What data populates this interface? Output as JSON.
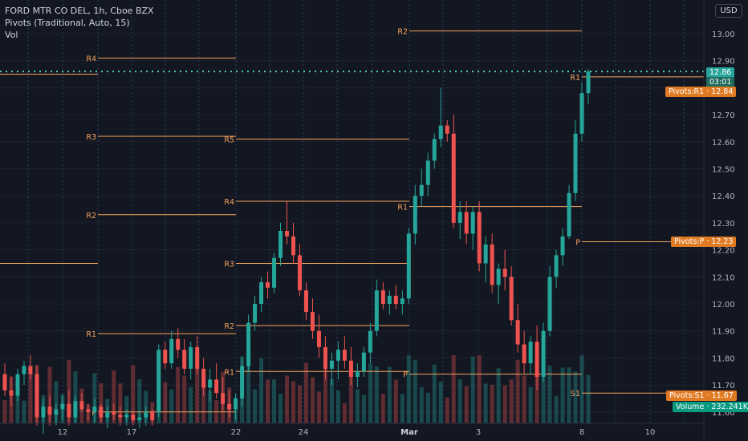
{
  "header": {
    "symbol_line": "FORD MTR CO DEL, 1h, Cboe BZX",
    "indicator_line": "Pivots (Traditional, Auto, 15)",
    "volume_line": "Vol"
  },
  "currency_button": "USD",
  "price_axis": {
    "ticks": [
      "13.00",
      "12.90",
      "12.80",
      "12.70",
      "12.60",
      "12.50",
      "12.40",
      "12.30",
      "12.20",
      "12.10",
      "12.00",
      "11.90",
      "11.80",
      "11.70",
      "11.60"
    ],
    "last_price": "12.86",
    "countdown": "03:01"
  },
  "time_axis": {
    "ticks": [
      "12",
      "17",
      "22",
      "24",
      "Mar",
      "3",
      "8",
      "10"
    ]
  },
  "tags": {
    "pivots_r1": "Pivots:R1",
    "pivots_r1_val": "12.84",
    "pivots_p": "Pivots:P",
    "pivots_p_val": "12.23",
    "pivots_s1": "Pivots:S1",
    "pivots_s1_val": "11.67",
    "volume": "Volume",
    "volume_val": "232.241K"
  },
  "colors": {
    "up": "#26a69a",
    "down": "#ef5350",
    "pivot": "#f7a35c",
    "price_line": "#4cd3a0",
    "background": "#131722"
  },
  "chart_data": {
    "type": "candlestick",
    "title": "FORD MTR CO DEL, 1h, Cboe BZX",
    "ylim": [
      11.57,
      13.1
    ],
    "grid": true,
    "x_ticks": [
      "12",
      "17",
      "22",
      "24",
      "Mar",
      "3",
      "8",
      "10"
    ],
    "pivot_levels": [
      {
        "label": "R4",
        "value": 12.91,
        "period": 1
      },
      {
        "label": "R3",
        "value": 12.62,
        "period": 1
      },
      {
        "label": "R2",
        "value": 12.33,
        "period": 1
      },
      {
        "label": "R1",
        "value": 11.89,
        "period": 1
      },
      {
        "label": "P",
        "value": 11.6,
        "period": 1
      },
      {
        "label": "R5",
        "value": 12.61,
        "period": 2
      },
      {
        "label": "R4",
        "value": 12.38,
        "period": 2
      },
      {
        "label": "R3",
        "value": 12.15,
        "period": 2
      },
      {
        "label": "R2",
        "value": 11.92,
        "period": 2
      },
      {
        "label": "R1",
        "value": 11.75,
        "period": 2
      },
      {
        "label": "R2",
        "value": 13.01,
        "period": 3
      },
      {
        "label": "R1",
        "value": 12.36,
        "period": 3
      },
      {
        "label": "P",
        "value": 11.74,
        "period": 3
      },
      {
        "label": "R1",
        "value": 12.84,
        "period": 4
      },
      {
        "label": "P",
        "value": 12.23,
        "period": 4
      },
      {
        "label": "S1",
        "value": 11.67,
        "period": 4
      }
    ],
    "last_price": 12.86,
    "candles": [
      [
        11.74,
        11.78,
        11.66,
        11.68
      ],
      [
        11.68,
        11.73,
        11.62,
        11.66
      ],
      [
        11.66,
        11.76,
        11.64,
        11.74
      ],
      [
        11.74,
        11.79,
        11.7,
        11.77
      ],
      [
        11.77,
        11.81,
        11.72,
        11.74
      ],
      [
        11.74,
        11.77,
        11.55,
        11.58
      ],
      [
        11.58,
        11.65,
        11.52,
        11.62
      ],
      [
        11.62,
        11.66,
        11.55,
        11.59
      ],
      [
        11.59,
        11.63,
        11.55,
        11.61
      ],
      [
        11.61,
        11.66,
        11.57,
        11.63
      ],
      [
        11.63,
        11.68,
        11.55,
        11.58
      ],
      [
        11.58,
        11.66,
        11.56,
        11.64
      ],
      [
        11.64,
        11.67,
        11.6,
        11.61
      ],
      [
        11.61,
        11.63,
        11.57,
        11.6
      ],
      [
        11.6,
        11.65,
        11.56,
        11.62
      ],
      [
        11.62,
        11.63,
        11.56,
        11.58
      ],
      [
        11.58,
        11.62,
        11.54,
        11.6
      ],
      [
        11.6,
        11.63,
        11.57,
        11.59
      ],
      [
        11.59,
        11.62,
        11.55,
        11.58
      ],
      [
        11.58,
        11.61,
        11.55,
        11.59
      ],
      [
        11.59,
        11.6,
        11.55,
        11.57
      ],
      [
        11.57,
        11.6,
        11.54,
        11.58
      ],
      [
        11.58,
        11.62,
        11.55,
        11.6
      ],
      [
        11.6,
        11.61,
        11.55,
        11.57
      ],
      [
        11.6,
        11.85,
        11.58,
        11.83
      ],
      [
        11.83,
        11.86,
        11.76,
        11.78
      ],
      [
        11.78,
        11.9,
        11.76,
        11.87
      ],
      [
        11.87,
        11.91,
        11.8,
        11.83
      ],
      [
        11.83,
        11.87,
        11.74,
        11.76
      ],
      [
        11.76,
        11.86,
        11.72,
        11.84
      ],
      [
        11.84,
        11.88,
        11.74,
        11.76
      ],
      [
        11.76,
        11.8,
        11.66,
        11.69
      ],
      [
        11.69,
        11.76,
        11.64,
        11.72
      ],
      [
        11.72,
        11.78,
        11.65,
        11.67
      ],
      [
        11.67,
        11.73,
        11.6,
        11.63
      ],
      [
        11.63,
        11.68,
        11.58,
        11.61
      ],
      [
        11.61,
        11.67,
        11.57,
        11.65
      ],
      [
        11.65,
        11.8,
        11.62,
        11.77
      ],
      [
        11.77,
        11.96,
        11.75,
        11.93
      ],
      [
        11.93,
        12.03,
        11.9,
        12.0
      ],
      [
        12.0,
        12.1,
        11.97,
        12.08
      ],
      [
        12.08,
        12.12,
        12.02,
        12.06
      ],
      [
        12.06,
        12.19,
        12.04,
        12.17
      ],
      [
        12.17,
        12.3,
        12.14,
        12.27
      ],
      [
        12.27,
        12.38,
        12.22,
        12.25
      ],
      [
        12.25,
        12.3,
        12.15,
        12.18
      ],
      [
        12.18,
        12.22,
        12.03,
        12.05
      ],
      [
        12.05,
        12.08,
        11.94,
        11.97
      ],
      [
        11.97,
        12.02,
        11.87,
        11.9
      ],
      [
        11.9,
        11.96,
        11.8,
        11.84
      ],
      [
        11.84,
        11.88,
        11.72,
        11.76
      ],
      [
        11.76,
        11.82,
        11.7,
        11.79
      ],
      [
        11.79,
        11.86,
        11.72,
        11.83
      ],
      [
        11.83,
        11.88,
        11.76,
        11.79
      ],
      [
        11.79,
        11.84,
        11.7,
        11.73
      ],
      [
        11.73,
        11.78,
        11.69,
        11.75
      ],
      [
        11.75,
        11.84,
        11.73,
        11.82
      ],
      [
        11.82,
        11.93,
        11.78,
        11.9
      ],
      [
        11.9,
        12.09,
        11.88,
        12.05
      ],
      [
        12.05,
        12.08,
        11.98,
        12.0
      ],
      [
        12.0,
        12.05,
        11.96,
        12.03
      ],
      [
        12.03,
        12.07,
        11.98,
        12.0
      ],
      [
        12.0,
        12.05,
        11.96,
        12.02
      ],
      [
        12.02,
        12.28,
        12.0,
        12.26
      ],
      [
        12.26,
        12.44,
        12.22,
        12.4
      ],
      [
        12.4,
        12.5,
        12.36,
        12.44
      ],
      [
        12.44,
        12.56,
        12.4,
        12.53
      ],
      [
        12.53,
        12.63,
        12.5,
        12.61
      ],
      [
        12.61,
        12.8,
        12.58,
        12.66
      ],
      [
        12.66,
        12.68,
        12.6,
        12.63
      ],
      [
        12.63,
        12.7,
        12.28,
        12.3
      ],
      [
        12.3,
        12.38,
        12.24,
        12.34
      ],
      [
        12.34,
        12.38,
        12.22,
        12.26
      ],
      [
        12.26,
        12.36,
        12.2,
        12.34
      ],
      [
        12.34,
        12.38,
        12.12,
        12.15
      ],
      [
        12.15,
        12.25,
        12.08,
        12.22
      ],
      [
        12.22,
        12.26,
        12.04,
        12.07
      ],
      [
        12.07,
        12.15,
        12.0,
        12.13
      ],
      [
        12.13,
        12.2,
        12.05,
        12.1
      ],
      [
        12.1,
        12.14,
        11.92,
        11.94
      ],
      [
        11.94,
        12.0,
        11.82,
        11.85
      ],
      [
        11.85,
        11.9,
        11.74,
        11.78
      ],
      [
        11.78,
        11.88,
        11.74,
        11.86
      ],
      [
        11.86,
        11.92,
        11.68,
        11.73
      ],
      [
        11.73,
        11.93,
        11.71,
        11.9
      ],
      [
        11.9,
        12.14,
        11.88,
        12.1
      ],
      [
        12.1,
        12.2,
        12.06,
        12.18
      ],
      [
        12.18,
        12.28,
        12.14,
        12.25
      ],
      [
        12.25,
        12.44,
        12.24,
        12.41
      ],
      [
        12.41,
        12.68,
        12.38,
        12.63
      ],
      [
        12.63,
        12.82,
        12.6,
        12.78
      ],
      [
        12.78,
        12.87,
        12.74,
        12.86
      ]
    ]
  }
}
